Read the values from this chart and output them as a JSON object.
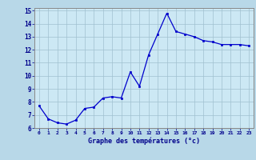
{
  "x": [
    0,
    1,
    2,
    3,
    4,
    5,
    6,
    7,
    8,
    9,
    10,
    11,
    12,
    13,
    14,
    15,
    16,
    17,
    18,
    19,
    20,
    21,
    22,
    23
  ],
  "y": [
    7.7,
    6.7,
    6.4,
    6.3,
    6.6,
    7.5,
    7.6,
    8.3,
    8.4,
    8.3,
    10.3,
    9.2,
    11.6,
    13.2,
    14.8,
    13.4,
    13.2,
    13.0,
    12.7,
    12.6,
    12.4,
    12.4,
    12.4,
    12.3
  ],
  "xlim": [
    -0.5,
    23.5
  ],
  "ylim": [
    6.0,
    15.2
  ],
  "xticks": [
    0,
    1,
    2,
    3,
    4,
    5,
    6,
    7,
    8,
    9,
    10,
    11,
    12,
    13,
    14,
    15,
    16,
    17,
    18,
    19,
    20,
    21,
    22,
    23
  ],
  "yticks": [
    6,
    7,
    8,
    9,
    10,
    11,
    12,
    13,
    14,
    15
  ],
  "xlabel": "Graphe des températures (°c)",
  "line_color": "#0000cc",
  "marker_color": "#0000cc",
  "bg_plot": "#cce8f4",
  "bg_fig": "#b8d8e8",
  "grid_color": "#a0c0d0",
  "tick_label_color": "#00008b",
  "xlabel_color": "#00008b",
  "axis_color": "#888888"
}
